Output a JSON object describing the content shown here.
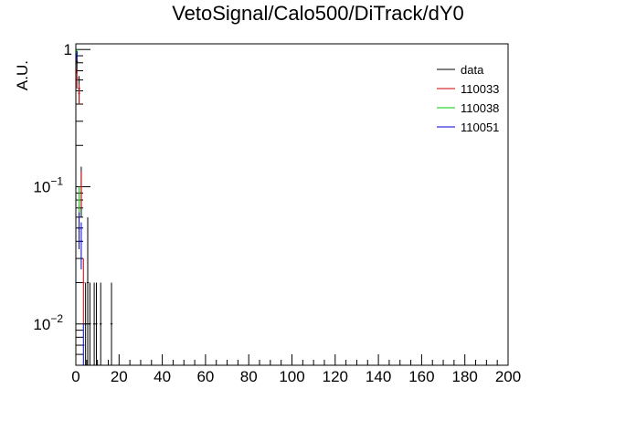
{
  "chart_data": {
    "type": "line",
    "title": "VetoSignal/Calo500/DiTrack/dY0",
    "xlabel": "",
    "ylabel": "A.U.",
    "xlim": [
      0,
      200
    ],
    "ylim": [
      0.005,
      1.1
    ],
    "yscale": "log",
    "grid": false,
    "legend_position": "top-right",
    "x_ticks": [
      "0",
      "20",
      "40",
      "60",
      "80",
      "100",
      "120",
      "140",
      "160",
      "180",
      "200"
    ],
    "y_ticks": [
      {
        "value": 1,
        "label": "1"
      },
      {
        "value": 0.1,
        "label": "10",
        "exp": "−1"
      },
      {
        "value": 0.01,
        "label": "10",
        "exp": "−2"
      }
    ],
    "series": [
      {
        "name": "data",
        "color": "#000000",
        "style": "points_with_errors",
        "points": [
          {
            "x": 0.5,
            "y": 0.82,
            "err": 0.15
          },
          {
            "x": 1.5,
            "y": 0.52,
            "err": 0.12
          },
          {
            "x": 2.5,
            "y": 0.1,
            "err": 0.04
          },
          {
            "x": 4.5,
            "y": 0.01,
            "err": 0.01
          },
          {
            "x": 5.5,
            "y": 0.02,
            "err": 0.04
          },
          {
            "x": 6.5,
            "y": 0.01,
            "err": 0.01
          },
          {
            "x": 8.5,
            "y": 0.01,
            "err": 0.01
          },
          {
            "x": 9.5,
            "y": 0.01,
            "err": 0.01
          },
          {
            "x": 11.5,
            "y": 0.01,
            "err": 0.01
          },
          {
            "x": 16.5,
            "y": 0.01,
            "err": 0.01
          }
        ]
      },
      {
        "name": "110033",
        "color": "#cc0000",
        "style": "step",
        "points": [
          {
            "x": 0.5,
            "y": 0.62,
            "err": 0.1
          },
          {
            "x": 1.5,
            "y": 0.48,
            "err": 0.08
          },
          {
            "x": 2.5,
            "y": 0.1,
            "err": 0.03
          },
          {
            "x": 3.5,
            "y": 0.02,
            "err": 0.01
          }
        ]
      },
      {
        "name": "110038",
        "color": "#00cc00",
        "style": "step",
        "points": [
          {
            "x": 0.5,
            "y": 0.95,
            "err": 0.06
          },
          {
            "x": 1.5,
            "y": 0.08,
            "err": 0.02
          }
        ]
      },
      {
        "name": "110051",
        "color": "#0000cc",
        "style": "step",
        "points": [
          {
            "x": 0.5,
            "y": 0.9,
            "err": 0.07
          },
          {
            "x": 1.5,
            "y": 0.05,
            "err": 0.015
          },
          {
            "x": 2.5,
            "y": 0.04,
            "err": 0.015
          },
          {
            "x": 3.5,
            "y": 0.007,
            "err": 0.003
          }
        ]
      }
    ]
  }
}
